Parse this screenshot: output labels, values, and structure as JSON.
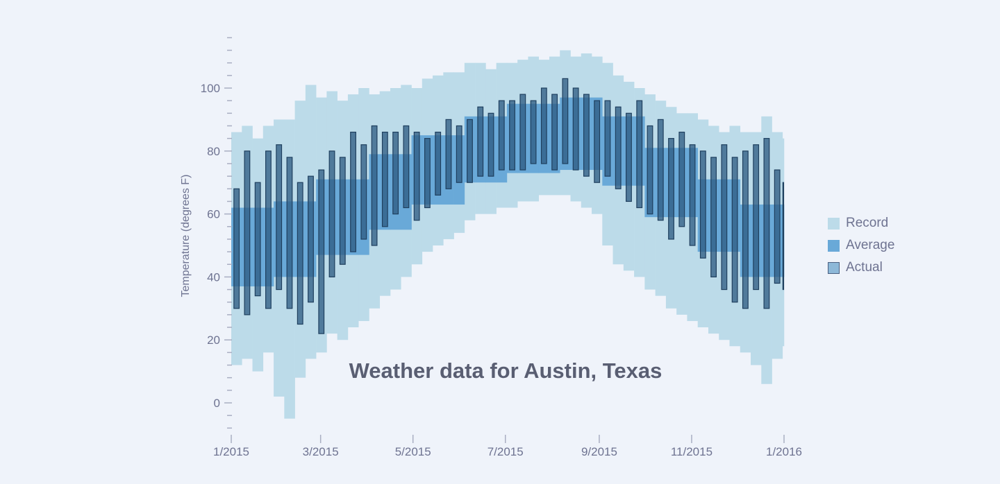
{
  "chart_data": {
    "type": "bar",
    "title": "Weather data for Austin, Texas",
    "ylabel": "Temperature (degrees F)",
    "xlabel": "",
    "ylim": [
      -10,
      117
    ],
    "xlim": [
      "2015-01-01",
      "2016-01-01"
    ],
    "yticks": [
      0,
      20,
      40,
      60,
      80,
      100
    ],
    "xticks": [
      {
        "date": "2015-01-01",
        "label": "1/2015"
      },
      {
        "date": "2015-03-01",
        "label": "3/2015"
      },
      {
        "date": "2015-05-01",
        "label": "5/2015"
      },
      {
        "date": "2015-07-01",
        "label": "7/2015"
      },
      {
        "date": "2015-09-01",
        "label": "9/2015"
      },
      {
        "date": "2015-11-01",
        "label": "11/2015"
      },
      {
        "date": "2016-01-01",
        "label": "1/2016"
      }
    ],
    "grid": false,
    "legend_position": "right",
    "dates": [
      "2015-01-01",
      "2015-01-08",
      "2015-01-15",
      "2015-01-22",
      "2015-01-29",
      "2015-02-05",
      "2015-02-12",
      "2015-02-19",
      "2015-02-26",
      "2015-03-05",
      "2015-03-12",
      "2015-03-19",
      "2015-03-26",
      "2015-04-02",
      "2015-04-09",
      "2015-04-16",
      "2015-04-23",
      "2015-04-30",
      "2015-05-07",
      "2015-05-14",
      "2015-05-21",
      "2015-05-28",
      "2015-06-04",
      "2015-06-11",
      "2015-06-18",
      "2015-06-25",
      "2015-07-02",
      "2015-07-09",
      "2015-07-16",
      "2015-07-23",
      "2015-07-30",
      "2015-08-06",
      "2015-08-13",
      "2015-08-20",
      "2015-08-27",
      "2015-09-03",
      "2015-09-10",
      "2015-09-17",
      "2015-09-24",
      "2015-10-01",
      "2015-10-08",
      "2015-10-15",
      "2015-10-22",
      "2015-10-29",
      "2015-11-05",
      "2015-11-12",
      "2015-11-19",
      "2015-11-26",
      "2015-12-03",
      "2015-12-10",
      "2015-12-17",
      "2015-12-24",
      "2015-12-31"
    ],
    "series": [
      {
        "name": "Record",
        "color": "#bcdbe9",
        "low": [
          12,
          14,
          10,
          16,
          2,
          -5,
          8,
          14,
          16,
          22,
          20,
          24,
          26,
          30,
          34,
          36,
          40,
          44,
          48,
          50,
          52,
          54,
          58,
          60,
          60,
          62,
          62,
          64,
          64,
          66,
          66,
          66,
          64,
          62,
          60,
          50,
          44,
          42,
          40,
          36,
          34,
          30,
          28,
          26,
          24,
          22,
          20,
          18,
          16,
          12,
          6,
          14,
          18
        ],
        "high": [
          86,
          88,
          84,
          88,
          90,
          90,
          96,
          101,
          97,
          99,
          96,
          98,
          100,
          98,
          99,
          100,
          101,
          100,
          103,
          104,
          105,
          105,
          108,
          108,
          106,
          108,
          108,
          109,
          110,
          109,
          110,
          112,
          110,
          111,
          110,
          108,
          104,
          102,
          100,
          98,
          96,
          94,
          92,
          92,
          90,
          88,
          86,
          88,
          86,
          86,
          91,
          86,
          84
        ]
      },
      {
        "name": "Average",
        "color": "#69a9d8",
        "low": [
          37,
          37,
          37,
          37,
          40,
          40,
          40,
          40,
          47,
          47,
          47,
          47,
          47,
          55,
          55,
          55,
          55,
          63,
          63,
          63,
          63,
          63,
          70,
          70,
          70,
          70,
          73,
          73,
          73,
          73,
          73,
          74,
          74,
          74,
          74,
          69,
          69,
          69,
          69,
          59,
          59,
          59,
          59,
          59,
          48,
          48,
          48,
          48,
          40,
          40,
          40,
          40,
          40
        ],
        "high": [
          62,
          62,
          62,
          62,
          64,
          64,
          64,
          64,
          71,
          71,
          71,
          71,
          71,
          79,
          79,
          79,
          79,
          85,
          85,
          85,
          85,
          85,
          91,
          91,
          91,
          91,
          95,
          95,
          95,
          95,
          95,
          97,
          97,
          97,
          97,
          91,
          91,
          91,
          91,
          81,
          81,
          81,
          81,
          81,
          71,
          71,
          71,
          71,
          63,
          63,
          63,
          63,
          63
        ]
      },
      {
        "name": "Actual",
        "color": "#8db8d8",
        "stroke": "#1f3f5e",
        "low": [
          30,
          28,
          34,
          30,
          36,
          30,
          25,
          32,
          22,
          40,
          44,
          48,
          52,
          50,
          56,
          60,
          62,
          58,
          62,
          66,
          68,
          70,
          70,
          72,
          72,
          74,
          74,
          74,
          76,
          76,
          74,
          76,
          74,
          72,
          70,
          72,
          68,
          64,
          62,
          60,
          58,
          52,
          56,
          50,
          46,
          40,
          36,
          32,
          30,
          36,
          30,
          38,
          36
        ],
        "high": [
          68,
          80,
          70,
          80,
          82,
          78,
          70,
          72,
          74,
          80,
          78,
          86,
          82,
          88,
          86,
          86,
          88,
          86,
          84,
          86,
          90,
          88,
          90,
          94,
          92,
          96,
          96,
          98,
          96,
          100,
          98,
          103,
          100,
          98,
          96,
          96,
          94,
          92,
          96,
          88,
          90,
          84,
          86,
          82,
          80,
          78,
          82,
          78,
          80,
          82,
          84,
          74,
          70
        ]
      }
    ]
  }
}
